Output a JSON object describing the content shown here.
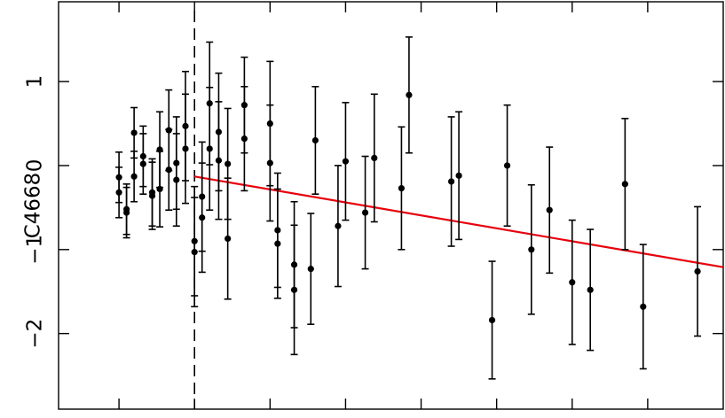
{
  "chart_data": {
    "type": "scatter",
    "title": "",
    "xlabel": "",
    "ylabel": "C4668",
    "ylim": [
      -2.9,
      1.95
    ],
    "xlim": [
      -0.4,
      4.0
    ],
    "y_ticks": [
      {
        "value": 1,
        "label": "1"
      },
      {
        "value": 0,
        "label": "0"
      },
      {
        "value": -1,
        "label": "−1"
      },
      {
        "value": -2,
        "label": "−2"
      }
    ],
    "x_ticks": [
      0.0,
      0.5,
      1.0,
      1.5,
      2.0,
      2.5,
      3.0,
      3.5
    ],
    "x_tick_labels_visible": false,
    "grid": false,
    "legend": "none",
    "colors": {
      "points": "#000000",
      "fit_line": "#e8000b",
      "axes": "#000000"
    },
    "vertical_reference_line": {
      "x": 0.5,
      "style": "dashed"
    },
    "fit_line": {
      "x": [
        0.5,
        4.0
      ],
      "y": [
        -0.13,
        -1.21
      ]
    },
    "series": [
      {
        "points": [
          {
            "x": 0.0,
            "y": -0.14,
            "err": 0.3
          },
          {
            "x": 0.0,
            "y": -0.32,
            "err": 0.3
          },
          {
            "x": 0.05,
            "y": -0.52,
            "err": 0.3
          },
          {
            "x": 0.05,
            "y": -0.56,
            "err": 0.3
          },
          {
            "x": 0.1,
            "y": 0.39,
            "err": 0.3
          },
          {
            "x": 0.1,
            "y": -0.13,
            "err": 0.3
          },
          {
            "x": 0.16,
            "y": 0.11,
            "err": 0.36
          },
          {
            "x": 0.16,
            "y": 0.02,
            "err": 0.36
          },
          {
            "x": 0.22,
            "y": -0.32,
            "err": 0.4
          },
          {
            "x": 0.22,
            "y": -0.36,
            "err": 0.4
          },
          {
            "x": 0.27,
            "y": 0.19,
            "err": 0.45
          },
          {
            "x": 0.27,
            "y": -0.28,
            "err": 0.45
          },
          {
            "x": 0.33,
            "y": 0.42,
            "err": 0.48
          },
          {
            "x": 0.33,
            "y": -0.05,
            "err": 0.48
          },
          {
            "x": 0.38,
            "y": 0.03,
            "err": 0.55
          },
          {
            "x": 0.38,
            "y": -0.17,
            "err": 0.55
          },
          {
            "x": 0.44,
            "y": 0.47,
            "err": 0.65
          },
          {
            "x": 0.44,
            "y": 0.2,
            "err": 0.65
          },
          {
            "x": 0.5,
            "y": -0.9,
            "err": 0.65
          },
          {
            "x": 0.5,
            "y": -1.03,
            "err": 0.65
          },
          {
            "x": 0.55,
            "y": -0.37,
            "err": 0.65
          },
          {
            "x": 0.55,
            "y": -0.62,
            "err": 0.65
          },
          {
            "x": 0.6,
            "y": 0.74,
            "err": 0.73
          },
          {
            "x": 0.6,
            "y": 0.2,
            "err": 0.73
          },
          {
            "x": 0.66,
            "y": 0.4,
            "err": 0.7
          },
          {
            "x": 0.66,
            "y": 0.06,
            "err": 0.7
          },
          {
            "x": 0.72,
            "y": 0.02,
            "err": 0.66
          },
          {
            "x": 0.72,
            "y": -0.87,
            "err": 0.72
          },
          {
            "x": 0.83,
            "y": 0.72,
            "err": 0.57
          },
          {
            "x": 0.83,
            "y": 0.32,
            "err": 0.62
          },
          {
            "x": 1.0,
            "y": 0.5,
            "err": 0.74
          },
          {
            "x": 1.0,
            "y": 0.03,
            "err": 0.69
          },
          {
            "x": 1.05,
            "y": -0.77,
            "err": 0.68
          },
          {
            "x": 1.05,
            "y": -0.93,
            "err": 0.65
          },
          {
            "x": 1.16,
            "y": -1.18,
            "err": 0.75
          },
          {
            "x": 1.16,
            "y": -1.48,
            "err": 0.77
          },
          {
            "x": 1.27,
            "y": -1.23,
            "err": 0.66
          },
          {
            "x": 1.3,
            "y": 0.3,
            "err": 0.64
          },
          {
            "x": 1.45,
            "y": -0.72,
            "err": 0.72
          },
          {
            "x": 1.5,
            "y": 0.05,
            "err": 0.7
          },
          {
            "x": 1.63,
            "y": -0.56,
            "err": 0.67
          },
          {
            "x": 1.69,
            "y": 0.09,
            "err": 0.76
          },
          {
            "x": 1.87,
            "y": -0.27,
            "err": 0.73
          },
          {
            "x": 1.92,
            "y": 0.84,
            "err": 0.69
          },
          {
            "x": 2.2,
            "y": -0.19,
            "err": 0.77
          },
          {
            "x": 2.25,
            "y": -0.12,
            "err": 0.76
          },
          {
            "x": 2.47,
            "y": -1.84,
            "err": 0.7
          },
          {
            "x": 2.57,
            "y": 0.0,
            "err": 0.72
          },
          {
            "x": 2.73,
            "y": -1.0,
            "err": 0.77
          },
          {
            "x": 2.85,
            "y": -0.53,
            "err": 0.75
          },
          {
            "x": 3.0,
            "y": -1.39,
            "err": 0.74
          },
          {
            "x": 3.12,
            "y": -1.48,
            "err": 0.72
          },
          {
            "x": 3.35,
            "y": -0.22,
            "err": 0.78
          },
          {
            "x": 3.47,
            "y": -1.68,
            "err": 0.74
          },
          {
            "x": 3.83,
            "y": -1.26,
            "err": 0.77
          }
        ]
      }
    ]
  }
}
